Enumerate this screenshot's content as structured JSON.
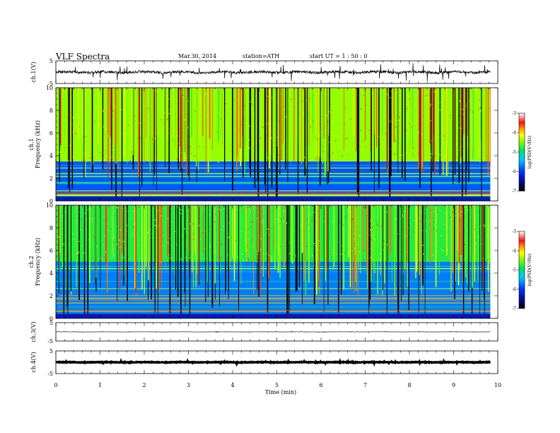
{
  "header": {
    "title": "VLF  Spectra",
    "date": "Mar.30, 2014",
    "station": "station=ATH",
    "start": "start  UT  =   1  : 50 : 0"
  },
  "colorbar_label": "log(PSD(V²/Hz)",
  "chart_data": {
    "type": "heatmap",
    "x": {
      "label": "Time  (min)",
      "range": [
        0,
        10
      ],
      "ticks": [
        "0",
        "1",
        "2",
        "3",
        "4",
        "5",
        "6",
        "7",
        "8",
        "9",
        "10"
      ],
      "data_end": 9.83
    },
    "panels": [
      {
        "id": "ch1-waveform",
        "type": "line",
        "ylabel": "ch.1(V)",
        "yticks": [
          "5",
          "-5"
        ],
        "ylim": [
          -5,
          5
        ],
        "baseline": 0,
        "noise_amplitude": 1.2,
        "spike_amplitude": 3.5
      },
      {
        "id": "ch1-spectrogram",
        "type": "heatmap",
        "ylabel": "Frequency  (kHz)",
        "channel": "ch.1",
        "yticks": [
          "10",
          "8",
          "6",
          "4",
          "2",
          "0"
        ],
        "ylim": [
          0,
          10
        ],
        "colorbar": {
          "ticks": [
            "-3",
            "-4",
            "-5",
            "-6",
            "-7"
          ],
          "range": [
            -7,
            -3
          ]
        },
        "background_level": -4.9,
        "low_band_level": -5.9,
        "low_band_top_khz": 3.5
      },
      {
        "id": "ch2-spectrogram",
        "type": "heatmap",
        "ylabel": "Frequency  (kHz)",
        "channel": "ch.2",
        "yticks": [
          "10",
          "8",
          "6",
          "4",
          "2",
          "0"
        ],
        "ylim": [
          0,
          10
        ],
        "colorbar": {
          "ticks": [
            "-3",
            "-4",
            "-5",
            "-6",
            "-7"
          ],
          "range": [
            -7,
            -3
          ]
        },
        "background_level": -5.2,
        "low_band_level": -5.8,
        "low_band_top_khz": 5.0
      },
      {
        "id": "ch3-waveform",
        "type": "line",
        "ylabel": "ch.3(V)",
        "yticks": [
          "5",
          "-5"
        ],
        "ylim": [
          -5,
          5
        ],
        "baseline": 0,
        "noise_amplitude": 0.15,
        "spike_amplitude": 0.3
      },
      {
        "id": "ch4-waveform",
        "type": "line",
        "ylabel": "ch.4(V)",
        "yticks": [
          "5",
          "-5"
        ],
        "ylim": [
          -5,
          5
        ],
        "baseline": 0,
        "noise_amplitude": 0.25,
        "spike_amplitude": 0.35
      }
    ]
  }
}
